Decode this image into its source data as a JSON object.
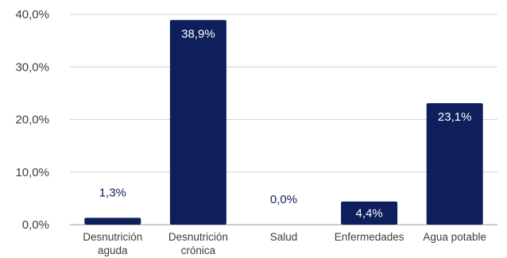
{
  "chart_data": {
    "type": "bar",
    "title": "",
    "xlabel": "",
    "ylabel": "",
    "categories": [
      [
        "Desnutrición",
        "aguda"
      ],
      [
        "Desnutrición",
        "crónica"
      ],
      [
        "Salud"
      ],
      [
        "Enfermedades"
      ],
      [
        "Agua potable"
      ]
    ],
    "values": [
      1.3,
      38.9,
      0.0,
      4.4,
      23.1
    ],
    "data_labels": [
      "1,3%",
      "38,9%",
      "0,0%",
      "4,4%",
      "23,1%"
    ],
    "ylim": [
      0,
      40
    ],
    "yticks": [
      0,
      10,
      20,
      30,
      40
    ],
    "ytick_labels": [
      "0,0%",
      "10,0%",
      "20,0%",
      "30,0%",
      "40,0%"
    ],
    "grid": true,
    "legend": "none",
    "colors": {
      "bar": "#0f1f5c",
      "label_inside": "#ffffff",
      "label_outside": "#0f1f5c",
      "grid": "#d4d4d4",
      "axis_text": "#3d3d3d"
    }
  }
}
